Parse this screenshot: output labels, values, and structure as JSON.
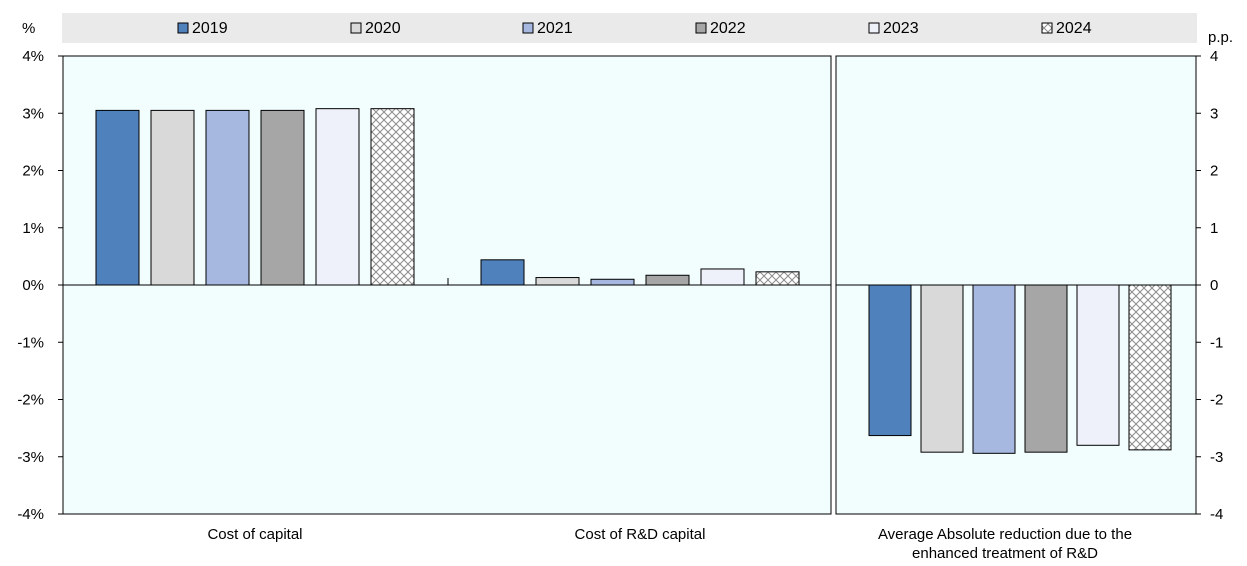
{
  "chart_data": {
    "type": "bar",
    "left_axis_unit": "%",
    "right_axis_unit": "p.p.",
    "left_ticks": [
      "4%",
      "3%",
      "2%",
      "1%",
      "0%",
      "-1%",
      "-2%",
      "-3%",
      "-4%"
    ],
    "right_ticks": [
      "4",
      "3",
      "2",
      "1",
      "0",
      "-1",
      "-2",
      "-3",
      "-4"
    ],
    "ylim": [
      -4,
      4
    ],
    "legend_position": "top",
    "categories": [
      {
        "label_lines": [
          "Cost of capital"
        ]
      },
      {
        "label_lines": [
          "Cost of R&D capital"
        ]
      },
      {
        "label_lines": [
          "Average Absolute reduction due to the",
          "enhanced treatment of R&D"
        ]
      }
    ],
    "series": [
      {
        "name": "2019",
        "color": "#4f81bd",
        "pattern": "solid",
        "values": [
          3.05,
          0.44,
          -2.63
        ]
      },
      {
        "name": "2020",
        "color": "#d9d9d9",
        "pattern": "solid",
        "values": [
          3.05,
          0.13,
          -2.92
        ]
      },
      {
        "name": "2021",
        "color": "#a6b8e0",
        "pattern": "solid",
        "values": [
          3.05,
          0.1,
          -2.94
        ]
      },
      {
        "name": "2022",
        "color": "#a6a6a6",
        "pattern": "solid",
        "values": [
          3.05,
          0.17,
          -2.92
        ]
      },
      {
        "name": "2023",
        "color": "#eef1fa",
        "pattern": "solid",
        "values": [
          3.08,
          0.28,
          -2.8
        ]
      },
      {
        "name": "2024",
        "color": "#ffffff",
        "pattern": "crosshatch",
        "values": [
          3.08,
          0.23,
          -2.88
        ]
      }
    ],
    "panel_background": "#f2fefe",
    "legend_background": "#eaeaea"
  }
}
